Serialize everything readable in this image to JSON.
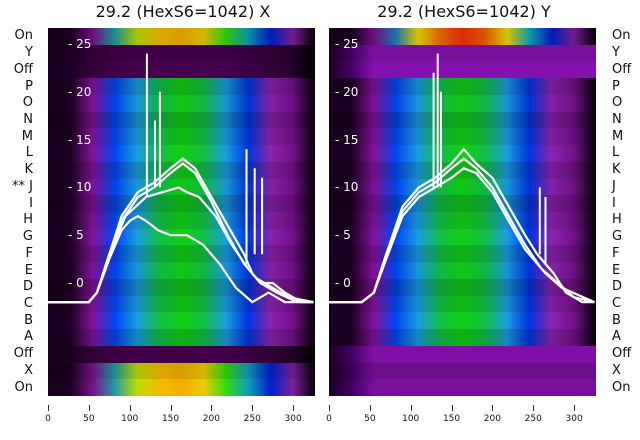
{
  "chart_data": [
    {
      "type": "heatmap",
      "title": "29.2 (HexS6=1042) X",
      "side": "left",
      "row_labels": [
        "On",
        "Y",
        "Off",
        "P",
        "O",
        "N",
        "M",
        "L",
        "K",
        "** J",
        "I",
        "H",
        "G",
        "F",
        "E",
        "D",
        "C",
        "B",
        "A",
        "Off",
        "X",
        "On"
      ],
      "row_kinds": [
        "on",
        "off",
        "off",
        "m",
        "m",
        "m",
        "m",
        "m",
        "m",
        "m",
        "m",
        "m",
        "m",
        "m",
        "m",
        "m",
        "m",
        "m",
        "m",
        "off",
        "on",
        "on"
      ],
      "y_ticks": [
        0,
        5,
        10,
        15,
        20,
        25
      ],
      "x_ticks": [
        0,
        50,
        100,
        150,
        200,
        250,
        300
      ],
      "xlim": [
        0,
        330
      ],
      "ylim": [
        -5,
        27.5
      ],
      "series": [
        {
          "name": "profile-1",
          "points": [
            [
              0,
              -2
            ],
            [
              50,
              -2
            ],
            [
              60,
              -1
            ],
            [
              75,
              3
            ],
            [
              90,
              7
            ],
            [
              110,
              9.5
            ],
            [
              130,
              10.5
            ],
            [
              150,
              12
            ],
            [
              165,
              13
            ],
            [
              180,
              12
            ],
            [
              200,
              9
            ],
            [
              220,
              6
            ],
            [
              240,
              3
            ],
            [
              250,
              1
            ],
            [
              260,
              0
            ],
            [
              275,
              0
            ],
            [
              290,
              -1
            ],
            [
              310,
              -2
            ],
            [
              325,
              -2
            ]
          ]
        },
        {
          "name": "profile-2",
          "points": [
            [
              0,
              -2
            ],
            [
              50,
              -2
            ],
            [
              60,
              -1
            ],
            [
              75,
              3
            ],
            [
              90,
              6.5
            ],
            [
              110,
              9
            ],
            [
              130,
              10
            ],
            [
              150,
              11.5
            ],
            [
              165,
              12.5
            ],
            [
              180,
              11.5
            ],
            [
              200,
              8.5
            ],
            [
              220,
              5
            ],
            [
              240,
              2
            ],
            [
              255,
              0.5
            ],
            [
              275,
              -0.5
            ],
            [
              295,
              -1.5
            ],
            [
              325,
              -2
            ]
          ]
        },
        {
          "name": "profile-3",
          "points": [
            [
              0,
              -2
            ],
            [
              50,
              -2
            ],
            [
              60,
              -1
            ],
            [
              75,
              2.5
            ],
            [
              90,
              5.5
            ],
            [
              100,
              6.5
            ],
            [
              110,
              7
            ],
            [
              120,
              6.5
            ],
            [
              135,
              5.5
            ],
            [
              150,
              5
            ],
            [
              170,
              5
            ],
            [
              190,
              4
            ],
            [
              210,
              2
            ],
            [
              230,
              -0.5
            ],
            [
              250,
              -2
            ],
            [
              270,
              -1
            ],
            [
              290,
              -2
            ],
            [
              325,
              -2
            ]
          ]
        },
        {
          "name": "profile-4",
          "points": [
            [
              0,
              -2
            ],
            [
              50,
              -2
            ],
            [
              60,
              -1
            ],
            [
              75,
              3
            ],
            [
              95,
              7
            ],
            [
              120,
              9
            ],
            [
              140,
              9.5
            ],
            [
              160,
              10
            ],
            [
              170,
              9.5
            ],
            [
              185,
              9
            ],
            [
              205,
              7
            ],
            [
              225,
              4
            ],
            [
              245,
              1.5
            ],
            [
              260,
              0
            ],
            [
              280,
              -1
            ],
            [
              300,
              -1.8
            ],
            [
              325,
              -2
            ]
          ]
        },
        {
          "name": "spike-1",
          "points": [
            [
              121,
              9
            ],
            [
              121,
              24
            ]
          ]
        },
        {
          "name": "spike-2",
          "points": [
            [
              137,
              10
            ],
            [
              137,
              20
            ]
          ]
        },
        {
          "name": "spike-3",
          "points": [
            [
              131,
              10
            ],
            [
              131,
              17
            ]
          ]
        },
        {
          "name": "spike-4",
          "points": [
            [
              243,
              2
            ],
            [
              243,
              14
            ]
          ]
        },
        {
          "name": "spike-5",
          "points": [
            [
              253,
              3
            ],
            [
              253,
              12
            ]
          ]
        },
        {
          "name": "spike-6",
          "points": [
            [
              262,
              3
            ],
            [
              262,
              11
            ]
          ]
        }
      ]
    },
    {
      "type": "heatmap",
      "title": "29.2 (HexS6=1042) Y",
      "side": "right",
      "row_labels": [
        "On",
        "Y",
        "Off",
        "P",
        "O",
        "N",
        "M",
        "L",
        "K",
        "J",
        "I",
        "H",
        "G",
        "F",
        "E",
        "D",
        "C",
        "B",
        "A",
        "Off",
        "X",
        "On"
      ],
      "row_kinds": [
        "hot",
        "off2",
        "off2",
        "m",
        "m",
        "m",
        "m",
        "m",
        "m",
        "m",
        "m",
        "m",
        "m",
        "m",
        "m",
        "m",
        "m",
        "m",
        "m",
        "off2",
        "off2",
        "off2"
      ],
      "y_ticks": [
        0,
        5,
        10,
        15,
        20,
        25
      ],
      "x_ticks": [
        0,
        50,
        100,
        150,
        200,
        250,
        300
      ],
      "xlim": [
        0,
        330
      ],
      "ylim": [
        -5,
        27.5
      ],
      "series": [
        {
          "name": "profile-1",
          "points": [
            [
              0,
              -2
            ],
            [
              40,
              -2
            ],
            [
              55,
              -1
            ],
            [
              70,
              3
            ],
            [
              90,
              8
            ],
            [
              110,
              10
            ],
            [
              130,
              11
            ],
            [
              150,
              12.5
            ],
            [
              165,
              14
            ],
            [
              180,
              12.5
            ],
            [
              200,
              11
            ],
            [
              220,
              8
            ],
            [
              240,
              5
            ],
            [
              255,
              3
            ],
            [
              265,
              2
            ],
            [
              275,
              1
            ],
            [
              290,
              -1
            ],
            [
              310,
              -2
            ],
            [
              325,
              -2
            ]
          ]
        },
        {
          "name": "profile-2",
          "points": [
            [
              0,
              -2
            ],
            [
              40,
              -2
            ],
            [
              55,
              -1
            ],
            [
              70,
              3
            ],
            [
              90,
              7.5
            ],
            [
              110,
              9.5
            ],
            [
              130,
              10.5
            ],
            [
              150,
              12
            ],
            [
              165,
              13
            ],
            [
              180,
              12
            ],
            [
              200,
              10
            ],
            [
              220,
              7
            ],
            [
              240,
              4
            ],
            [
              260,
              1.5
            ],
            [
              280,
              0
            ],
            [
              300,
              -1.5
            ],
            [
              325,
              -2
            ]
          ]
        },
        {
          "name": "profile-3",
          "points": [
            [
              0,
              -2
            ],
            [
              40,
              -2
            ],
            [
              55,
              -1
            ],
            [
              70,
              2.5
            ],
            [
              90,
              7
            ],
            [
              110,
              9
            ],
            [
              130,
              10
            ],
            [
              150,
              11
            ],
            [
              165,
              12
            ],
            [
              180,
              11.5
            ],
            [
              200,
              9.5
            ],
            [
              220,
              6.5
            ],
            [
              240,
              3.5
            ],
            [
              265,
              1
            ],
            [
              285,
              -0.5
            ],
            [
              325,
              -2
            ]
          ]
        },
        {
          "name": "spike-1",
          "points": [
            [
              133,
              10
            ],
            [
              133,
              24
            ]
          ]
        },
        {
          "name": "spike-2",
          "points": [
            [
              128,
              10
            ],
            [
              128,
              22
            ]
          ]
        },
        {
          "name": "spike-3",
          "points": [
            [
              137,
              10
            ],
            [
              137,
              20
            ]
          ]
        },
        {
          "name": "spike-4",
          "points": [
            [
              258,
              3
            ],
            [
              258,
              10
            ]
          ]
        },
        {
          "name": "spike-5",
          "points": [
            [
              265,
              2
            ],
            [
              265,
              9
            ]
          ]
        }
      ]
    }
  ],
  "palettes": {
    "m": [
      "#1a0020",
      "#1a0020",
      "#7a1090",
      "#0040e0",
      "#1890d0",
      "#10b040",
      "#10c010",
      "#10b040",
      "#1890d0",
      "#0030d0",
      "#8020a0",
      "#6a1080",
      "#000000"
    ],
    "on": [
      "#1a0020",
      "#1a0020",
      "#7a1090",
      "#20a0a0",
      "#c0e000",
      "#f8c000",
      "#f8b000",
      "#f0d000",
      "#30e010",
      "#10a0c0",
      "#0020d0",
      "#8020a0",
      "#000000"
    ],
    "hot": [
      "#1a0020",
      "#1a0020",
      "#7a1090",
      "#2080c0",
      "#f0e000",
      "#f87000",
      "#f83000",
      "#f86000",
      "#f0e000",
      "#10b0c0",
      "#0020d0",
      "#8020a0",
      "#000000"
    ],
    "off": [
      "#1a0020",
      "#1a0020",
      "#300035",
      "#3a0040",
      "#400048",
      "#400048",
      "#400048",
      "#400048",
      "#400048",
      "#350040",
      "#300035",
      "#200025",
      "#000000"
    ],
    "off2": [
      "#1a0020",
      "#400060",
      "#7a10a0",
      "#7a10a0",
      "#7a10a0",
      "#7a10a0",
      "#7a10a0",
      "#7a10a0",
      "#7a10a0",
      "#7a10a0",
      "#7a10a0",
      "#7a10a0",
      "#7a10a0"
    ]
  }
}
